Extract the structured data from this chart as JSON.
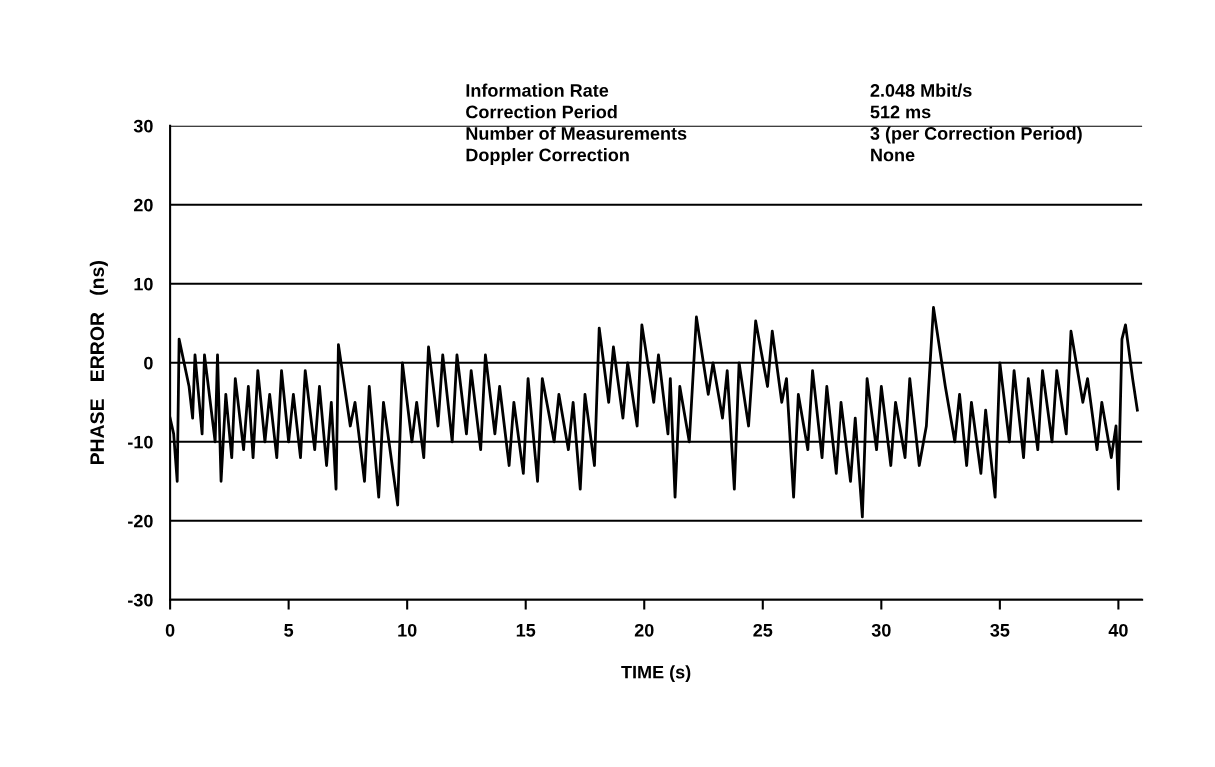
{
  "chart_data": {
    "type": "line",
    "xlabel": "TIME (s)",
    "ylabel": "PHASE   ERROR   (ns)",
    "annotations": [
      "Information Rate",
      "2.048 Mbit/s",
      "Correction Period",
      "512 ms",
      "Number of Measurements",
      "3 (per Correction Period)",
      "Doppler Correction",
      "None"
    ],
    "xlim": [
      0,
      41
    ],
    "xticks": [
      0,
      5,
      10,
      15,
      20,
      25,
      30,
      35,
      40
    ],
    "ylim": [
      -30,
      30
    ],
    "yticks": [
      -30,
      -20,
      -10,
      0,
      10,
      20,
      30
    ],
    "grid": "y",
    "marker": "none",
    "line_style": "solid",
    "series": [
      {
        "color": "#000000",
        "x": [
          0,
          0.15,
          0.3,
          0.38,
          0.8,
          0.95,
          1.05,
          1.35,
          1.45,
          1.9,
          2.0,
          2.15,
          2.35,
          2.6,
          2.75,
          3.1,
          3.3,
          3.5,
          3.7,
          4.0,
          4.2,
          4.5,
          4.7,
          5.0,
          5.2,
          5.5,
          5.7,
          6.1,
          6.3,
          6.6,
          6.8,
          7.0,
          7.1,
          7.6,
          7.8,
          8.2,
          8.4,
          8.8,
          9.0,
          9.6,
          9.8,
          10.2,
          10.4,
          10.7,
          10.9,
          11.3,
          11.5,
          11.9,
          12.1,
          12.5,
          12.7,
          13.1,
          13.3,
          13.7,
          13.9,
          14.3,
          14.5,
          14.9,
          15.1,
          15.5,
          15.7,
          16.2,
          16.4,
          16.8,
          17.0,
          17.3,
          17.5,
          17.9,
          18.1,
          18.5,
          18.7,
          19.1,
          19.3,
          19.7,
          19.9,
          20.4,
          20.6,
          21.0,
          21.1,
          21.3,
          21.5,
          21.9,
          22.2,
          22.7,
          22.9,
          23.3,
          23.5,
          23.8,
          24.0,
          24.4,
          24.7,
          25.2,
          25.4,
          25.8,
          26.0,
          26.3,
          26.5,
          26.9,
          27.1,
          27.5,
          27.7,
          28.1,
          28.3,
          28.7,
          28.9,
          29.2,
          29.4,
          29.8,
          30.0,
          30.4,
          30.6,
          31.0,
          31.2,
          31.6,
          31.9,
          32.2,
          32.7,
          33.1,
          33.3,
          33.6,
          33.8,
          34.2,
          34.4,
          34.8,
          35.0,
          35.4,
          35.6,
          36.0,
          36.2,
          36.6,
          36.8,
          37.2,
          37.4,
          37.8,
          38.0,
          38.5,
          38.7,
          39.1,
          39.3,
          39.7,
          39.9,
          40.0,
          40.15,
          40.3,
          40.6,
          40.8
        ],
        "values": [
          -7,
          -9,
          -15,
          3,
          -3,
          -7,
          1,
          -9,
          1,
          -10,
          1,
          -15,
          -4,
          -12,
          -2,
          -11,
          -3,
          -12,
          -1,
          -10,
          -4,
          -12,
          -1,
          -10,
          -4,
          -12,
          -1,
          -11,
          -3,
          -13,
          -5,
          -16,
          2.3,
          -8,
          -5,
          -15,
          -3,
          -17,
          -5,
          -18,
          0,
          -10,
          -5,
          -12,
          2,
          -8,
          1,
          -10,
          1,
          -9,
          -1,
          -11,
          1,
          -9,
          -3,
          -13,
          -5,
          -14,
          -2,
          -15,
          -2,
          -10,
          -4,
          -11,
          -5,
          -16,
          -4,
          -13,
          4.4,
          -5,
          2,
          -7,
          0,
          -8,
          4.8,
          -5,
          1,
          -9,
          -2,
          -17,
          -3,
          -10,
          5.8,
          -4,
          0,
          -7,
          -1,
          -16,
          0,
          -8,
          5.3,
          -3,
          4,
          -5,
          -2,
          -17,
          -4,
          -11,
          -1,
          -12,
          -3,
          -14,
          -5,
          -15,
          -7,
          -19.5,
          -2,
          -11,
          -3,
          -13,
          -5,
          -12,
          -2,
          -13,
          -8,
          7,
          -3,
          -10,
          -4,
          -13,
          -5,
          -14,
          -6,
          -17,
          0,
          -10,
          -1,
          -12,
          -2,
          -11,
          -1,
          -10,
          -1,
          -9,
          4,
          -5,
          -2,
          -11,
          -5,
          -12,
          -8,
          -16,
          3,
          4.8,
          -2,
          -6
        ]
      }
    ]
  }
}
